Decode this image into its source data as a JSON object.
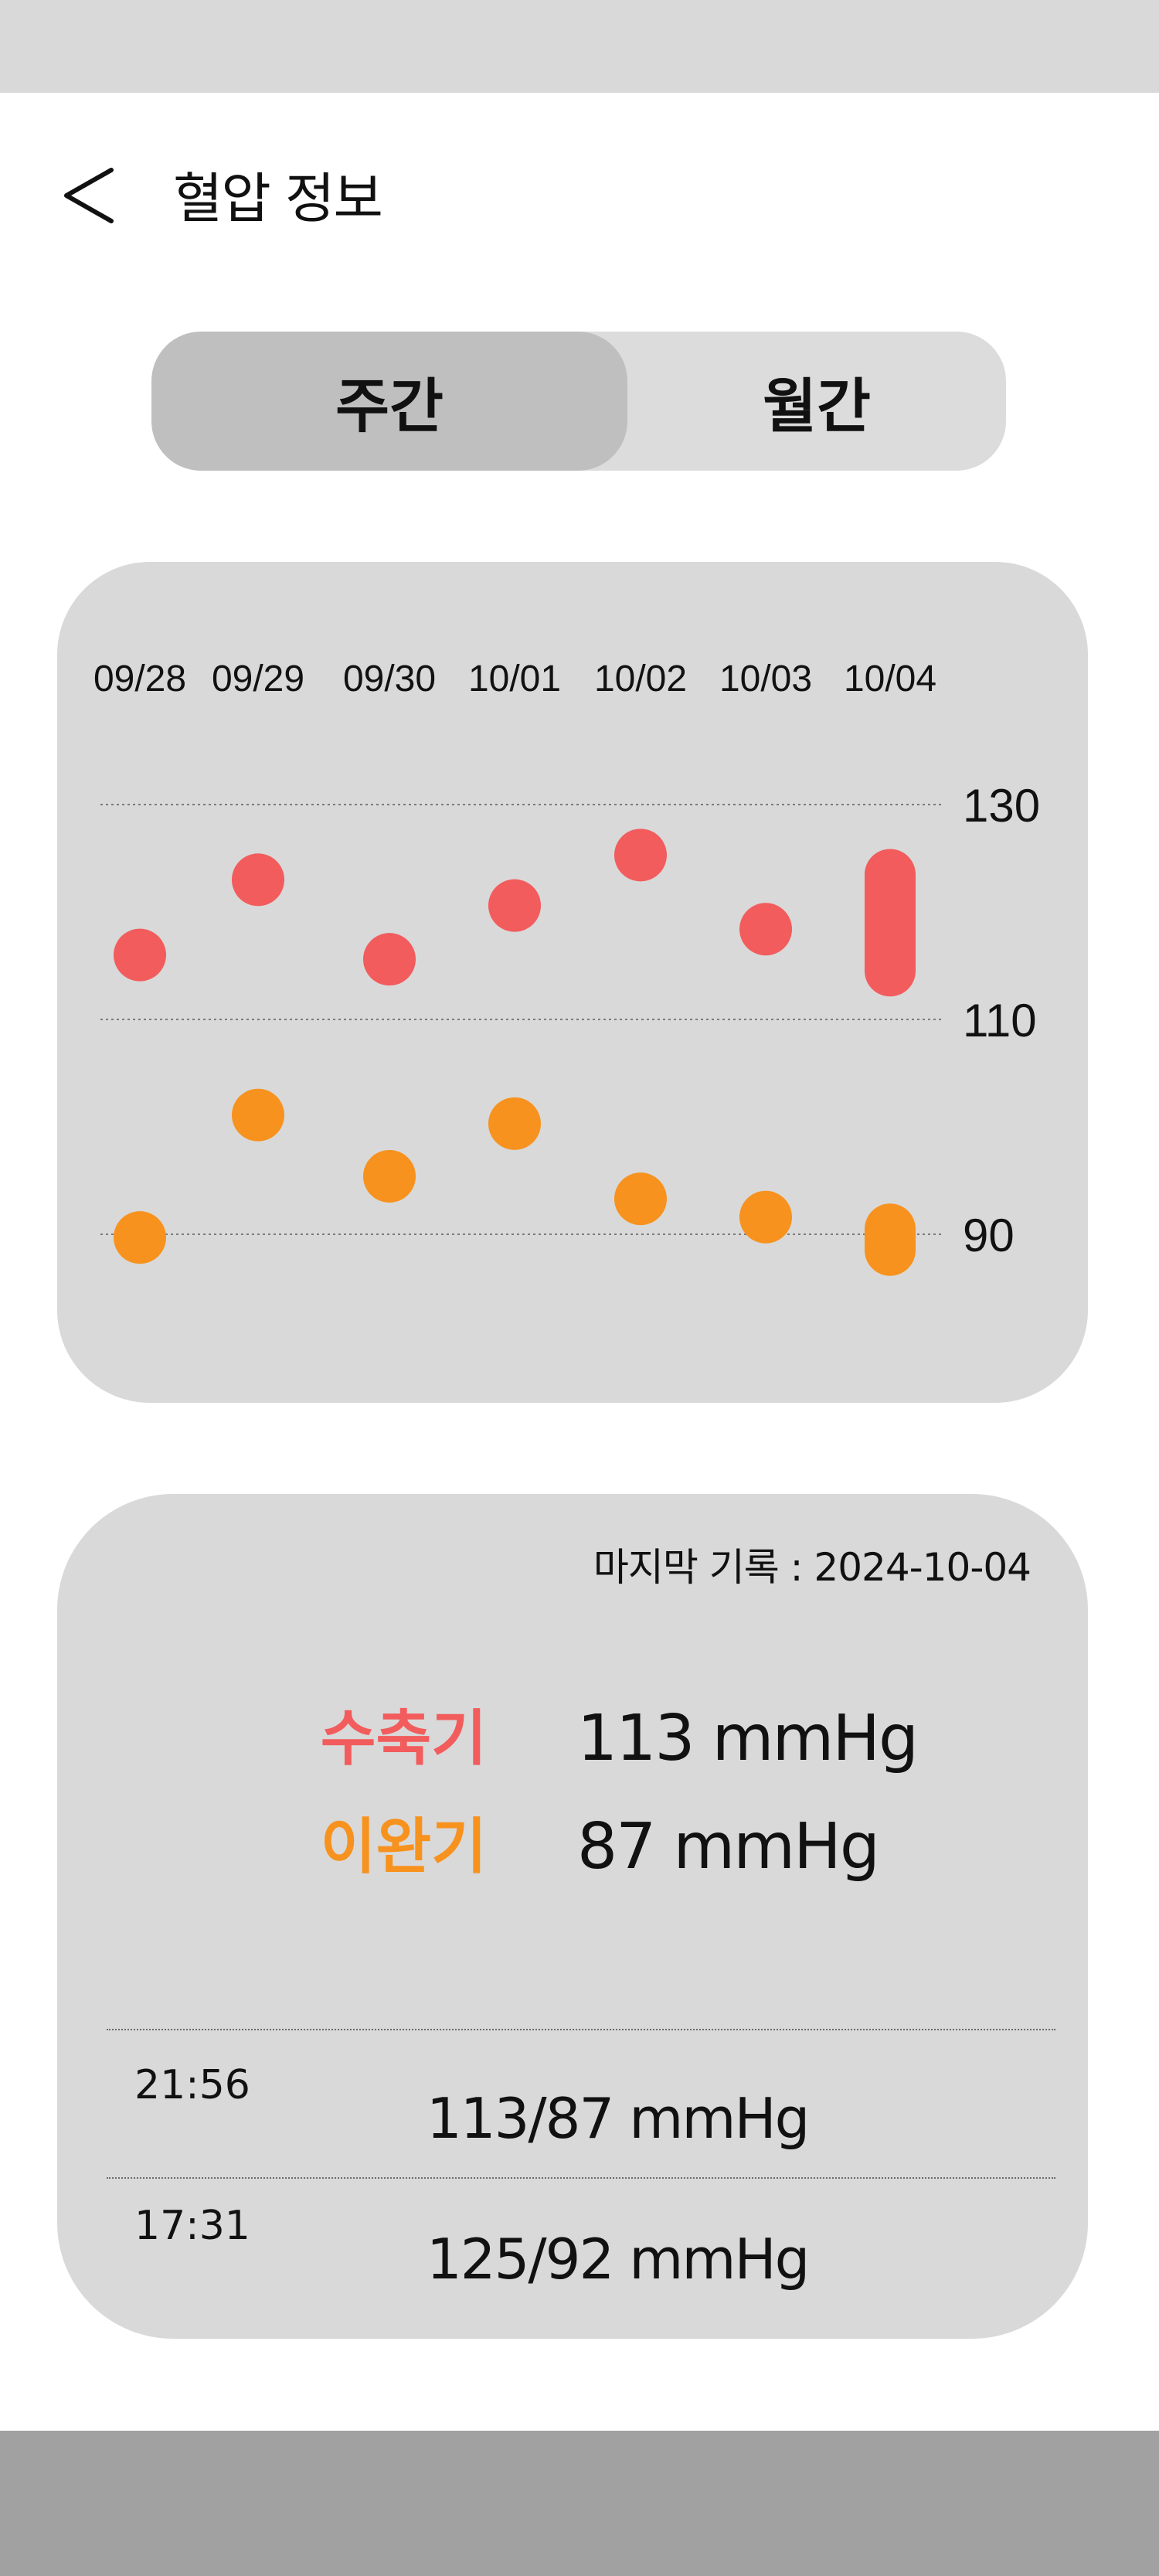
{
  "header": {
    "title": "혈압 정보",
    "back_icon": "chevron-left-icon"
  },
  "tabs": [
    {
      "label": "주간",
      "active": true
    },
    {
      "label": "월간",
      "active": false
    }
  ],
  "colors": {
    "systolic": "#f25c5c",
    "diastolic": "#f7921e",
    "card": "#d9d9d9",
    "tab_active": "#bfbfbf",
    "tab_inactive": "#dcdcdc"
  },
  "chart_data": {
    "type": "scatter",
    "categories": [
      "09/28",
      "09/29",
      "09/30",
      "10/01",
      "10/02",
      "10/03",
      "10/04"
    ],
    "y_ticks": [
      130,
      110,
      90
    ],
    "ylim": [
      80,
      134
    ],
    "series": [
      {
        "key": "systolic",
        "values": [
          116,
          123,
          115.6,
          120.6,
          125.3,
          118.4,
          [
            113,
            125
          ]
        ]
      },
      {
        "key": "diastolic",
        "values": [
          89.7,
          101.1,
          95.4,
          100.3,
          93.3,
          91.6,
          [
            87,
            92
          ]
        ]
      }
    ],
    "grid": true
  },
  "summary": {
    "last_record": "마지막 기록 : 2024-10-04",
    "systolic_label": "수축기",
    "systolic_value": "113 mmHg",
    "diastolic_label": "이완기",
    "diastolic_value": "87 mmHg"
  },
  "records": [
    {
      "time": "21:56",
      "value": "113/87 mmHg"
    },
    {
      "time": "17:31",
      "value": "125/92 mmHg"
    }
  ]
}
